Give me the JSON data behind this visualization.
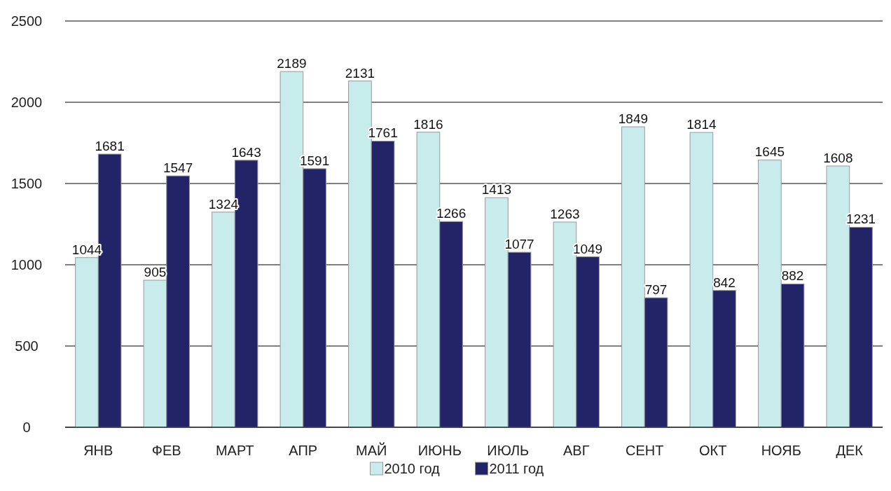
{
  "chart_data": {
    "type": "bar",
    "categories": [
      "ЯНВ",
      "ФЕВ",
      "МАРТ",
      "АПР",
      "МАЙ",
      "ИЮНЬ",
      "ИЮЛЬ",
      "АВГ",
      "СЕНТ",
      "ОКТ",
      "НОЯБ",
      "ДЕК"
    ],
    "series": [
      {
        "name": "2010 год",
        "color": "#c8ebeb",
        "values": [
          1044,
          905,
          1324,
          2189,
          2131,
          1816,
          1413,
          1263,
          1849,
          1814,
          1645,
          1608
        ]
      },
      {
        "name": "2011 год",
        "color": "#232468",
        "values": [
          1681,
          1547,
          1643,
          1591,
          1761,
          1266,
          1077,
          1049,
          797,
          842,
          882,
          1231
        ]
      }
    ],
    "ylim": [
      0,
      2500
    ],
    "yticks": [
      0,
      500,
      1000,
      1500,
      2000,
      2500
    ],
    "grid": "y",
    "legend": "bottom",
    "data_labels": true
  }
}
